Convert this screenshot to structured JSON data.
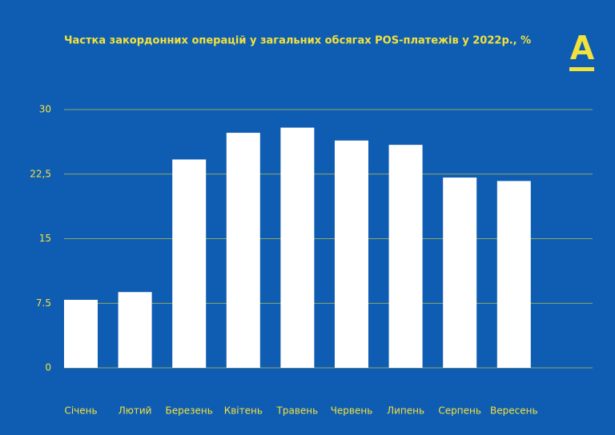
{
  "chart_data": {
    "type": "bar",
    "title": "Частка закордонних операцій у загальних обсягах POS-платежів у 2022р., %",
    "categories": [
      "Січень",
      "Лютий",
      "Березень",
      "Квітень",
      "Травень",
      "Червень",
      "Липень",
      "Серпень",
      "Вересень"
    ],
    "values": [
      7.9,
      8.8,
      24.2,
      27.3,
      27.9,
      26.4,
      25.9,
      22.1,
      21.7
    ],
    "color": "#ffffff",
    "ylim": [
      0,
      30
    ],
    "yticks": [
      0,
      {
        "value": 7.5,
        "label": "7.5"
      },
      15,
      {
        "value": 22.5,
        "label": "22,5"
      },
      30
    ],
    "grid": true
  }
}
